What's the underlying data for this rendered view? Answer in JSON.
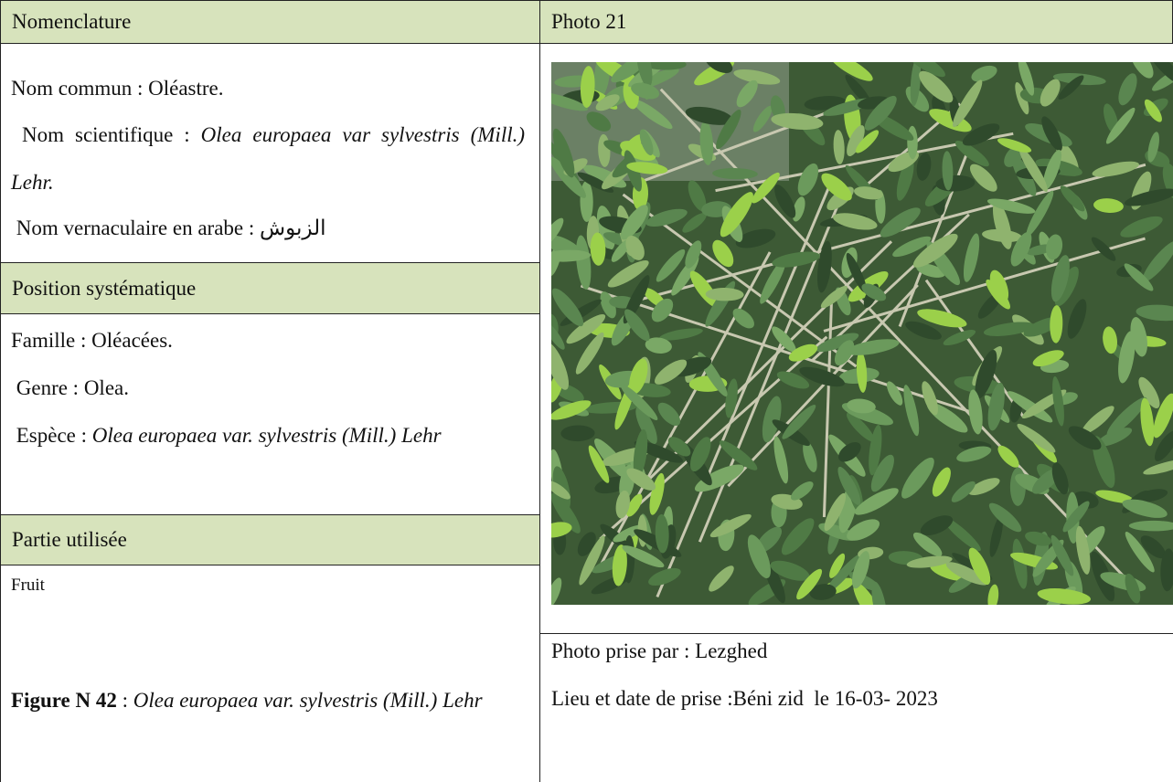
{
  "nomenclature": {
    "header": "Nomenclature",
    "nom_commun": "Nom commun : Oléastre.",
    "nom_scientifique_label": "Nom scientifique :",
    "nom_scientifique_value": "Olea europaea var sylvestris (Mill.) Lehr.",
    "nom_vernaculaire_label": "Nom vernaculaire en arabe :",
    "nom_vernaculaire_value": "الزبوش"
  },
  "position": {
    "header": "Position systématique",
    "famille": "Famille : Oléacées.",
    "genre": "Genre : Olea.",
    "espece_label": "Espèce :",
    "espece_value": "Olea europaea var. sylvestris (Mill.) Lehr"
  },
  "partie": {
    "header": "Partie utilisée",
    "value": "Fruit"
  },
  "figure": {
    "label": "Figure N 42",
    "separator": ":",
    "species": "Olea europaea var. sylvestris (Mill.) Lehr"
  },
  "photo": {
    "header": "Photo 21",
    "credit": "Photo prise par : Lezghed",
    "place_date": "Lieu et date de prise :Béni zid  le 16-03- 2023"
  }
}
